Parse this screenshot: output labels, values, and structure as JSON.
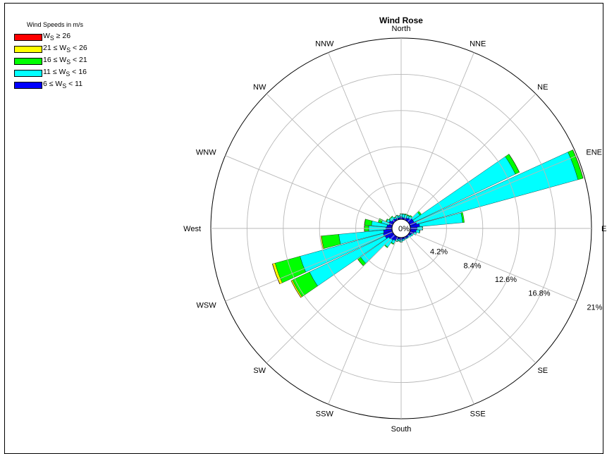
{
  "chart_data": {
    "type": "polar-bar",
    "title": "Wind Rose",
    "legend_title": "Wind Speeds in m/s",
    "legend_placement": "top-left",
    "legend": [
      {
        "label_html": "W<sub>S</sub> ≥ 26",
        "color": "#ff0000"
      },
      {
        "label_html": "21 ≤ W<sub>S</sub> &lt; 26",
        "color": "#ffff00"
      },
      {
        "label_html": "16 ≤ W<sub>S</sub> &lt; 21",
        "color": "#00ff00"
      },
      {
        "label_html": "11 ≤ W<sub>S</sub> &lt; 16",
        "color": "#00ffff"
      },
      {
        "label_html": "6 ≤ W<sub>S</sub> &lt; 11",
        "color": "#0000ff"
      }
    ],
    "directions": [
      "North",
      "NNE",
      "NE",
      "ENE",
      "Eas",
      "SE",
      "SSE",
      "South",
      "SSW",
      "SW",
      "WSW",
      "WNW",
      "West",
      "NW",
      "NNW"
    ],
    "radial_ticks": [
      {
        "value": 4.2,
        "label": "4.2%"
      },
      {
        "value": 8.4,
        "label": "8.4%"
      },
      {
        "value": 12.6,
        "label": "12.6%"
      },
      {
        "value": 16.8,
        "label": "16.8%"
      },
      {
        "value": 21,
        "label": "21%"
      }
    ],
    "center_label": "0%",
    "rmax": 21,
    "grid": true,
    "series_order": [
      "6 ≤ Ws < 11",
      "11 ≤ Ws < 16",
      "16 ≤ Ws < 21",
      "21 ≤ Ws < 26",
      "Ws ≥ 26"
    ],
    "sectors": [
      {
        "dir_deg": 0,
        "values": [
          0.3,
          0.3,
          0.05,
          0,
          0
        ]
      },
      {
        "dir_deg": 10,
        "values": [
          0.2,
          0.4,
          0.05,
          0,
          0
        ]
      },
      {
        "dir_deg": 20,
        "values": [
          0.2,
          0.4,
          0.1,
          0,
          0
        ]
      },
      {
        "dir_deg": 30,
        "values": [
          0.3,
          0.3,
          0.1,
          0,
          0
        ]
      },
      {
        "dir_deg": 40,
        "values": [
          0.4,
          0.3,
          0.1,
          0,
          0
        ]
      },
      {
        "dir_deg": 50,
        "values": [
          0.6,
          1.0,
          0.2,
          0,
          0
        ]
      },
      {
        "dir_deg": 60,
        "values": [
          0.6,
          13.0,
          0.5,
          0.02,
          0
        ]
      },
      {
        "dir_deg": 70,
        "values": [
          0.8,
          19.4,
          0.6,
          0.03,
          0
        ]
      },
      {
        "dir_deg": 80,
        "values": [
          1.1,
          5.0,
          0.2,
          0,
          0
        ]
      },
      {
        "dir_deg": 90,
        "values": [
          0.8,
          0.6,
          0.05,
          0,
          0
        ]
      },
      {
        "dir_deg": 100,
        "values": [
          0.7,
          0.4,
          0.05,
          0,
          0
        ]
      },
      {
        "dir_deg": 110,
        "values": [
          0.5,
          0.3,
          0,
          0,
          0
        ]
      },
      {
        "dir_deg": 120,
        "values": [
          0.3,
          0.2,
          0,
          0,
          0
        ]
      },
      {
        "dir_deg": 130,
        "values": [
          0.2,
          0.2,
          0,
          0,
          0
        ]
      },
      {
        "dir_deg": 140,
        "values": [
          0.2,
          0.1,
          0,
          0,
          0
        ]
      },
      {
        "dir_deg": 150,
        "values": [
          0.2,
          0.1,
          0,
          0,
          0
        ]
      },
      {
        "dir_deg": 160,
        "values": [
          0.2,
          0.1,
          0,
          0,
          0
        ]
      },
      {
        "dir_deg": 170,
        "values": [
          0.2,
          0.2,
          0,
          0,
          0
        ]
      },
      {
        "dir_deg": 180,
        "values": [
          0.3,
          0.2,
          0.05,
          0,
          0
        ]
      },
      {
        "dir_deg": 190,
        "values": [
          0.2,
          0.2,
          0.05,
          0,
          0
        ]
      },
      {
        "dir_deg": 200,
        "values": [
          0.3,
          0.2,
          0.05,
          0,
          0
        ]
      },
      {
        "dir_deg": 210,
        "values": [
          0.5,
          0.4,
          0.1,
          0,
          0
        ]
      },
      {
        "dir_deg": 220,
        "values": [
          0.6,
          1.0,
          0.1,
          0,
          0
        ]
      },
      {
        "dir_deg": 230,
        "values": [
          0.7,
          4.0,
          0.4,
          0.02,
          0
        ]
      },
      {
        "dir_deg": 240,
        "values": [
          1.0,
          9.7,
          2.2,
          0.15,
          0.02
        ]
      },
      {
        "dir_deg": 250,
        "values": [
          1.1,
          10.0,
          3.0,
          0.3,
          0.03
        ]
      },
      {
        "dir_deg": 260,
        "values": [
          1.0,
          5.2,
          2.0,
          0.1,
          0
        ]
      },
      {
        "dir_deg": 270,
        "values": [
          0.7,
          2.0,
          0.5,
          0.02,
          0
        ]
      },
      {
        "dir_deg": 280,
        "values": [
          0.6,
          1.8,
          0.8,
          0.03,
          0
        ]
      },
      {
        "dir_deg": 290,
        "values": [
          0.4,
          0.9,
          0.4,
          0,
          0
        ]
      },
      {
        "dir_deg": 300,
        "values": [
          0.5,
          0.3,
          0.1,
          0,
          0
        ]
      },
      {
        "dir_deg": 310,
        "values": [
          0.3,
          0.3,
          0.1,
          0,
          0
        ]
      },
      {
        "dir_deg": 320,
        "values": [
          0.3,
          0.3,
          0.1,
          0,
          0
        ]
      },
      {
        "dir_deg": 330,
        "values": [
          0.2,
          0.2,
          0.05,
          0,
          0
        ]
      },
      {
        "dir_deg": 340,
        "values": [
          0.2,
          0.3,
          0.05,
          0,
          0
        ]
      },
      {
        "dir_deg": 350,
        "values": [
          0.2,
          0.2,
          0.05,
          0,
          0
        ]
      }
    ]
  }
}
